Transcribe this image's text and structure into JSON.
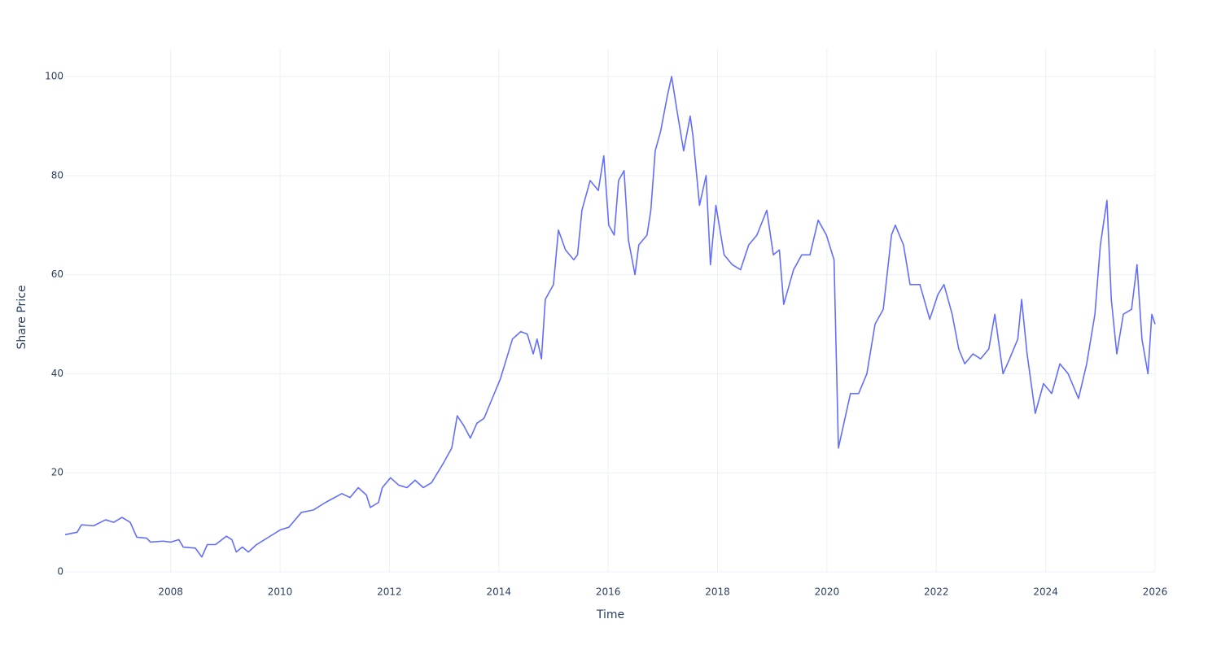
{
  "chart_data": {
    "type": "line",
    "x_label": "Time",
    "y_label": "Share Price",
    "x": [
      2006.07,
      2006.29,
      2006.37,
      2006.59,
      2006.81,
      2006.96,
      2007.11,
      2007.26,
      2007.38,
      2007.56,
      2007.63,
      2007.86,
      2008.0,
      2008.15,
      2008.23,
      2008.45,
      2008.57,
      2008.67,
      2008.82,
      2009.02,
      2009.12,
      2009.2,
      2009.31,
      2009.42,
      2009.57,
      2009.79,
      2010.01,
      2010.16,
      2010.39,
      2010.61,
      2010.83,
      2011.13,
      2011.28,
      2011.43,
      2011.58,
      2011.65,
      2011.8,
      2011.87,
      2012.02,
      2012.17,
      2012.32,
      2012.47,
      2012.62,
      2012.77,
      2012.99,
      2013.14,
      2013.24,
      2013.36,
      2013.48,
      2013.6,
      2013.73,
      2013.88,
      2014.03,
      2014.14,
      2014.25,
      2014.4,
      2014.52,
      2014.63,
      2014.7,
      2014.78,
      2014.85,
      2015.0,
      2015.09,
      2015.22,
      2015.37,
      2015.44,
      2015.52,
      2015.67,
      2015.82,
      2015.92,
      2016.01,
      2016.11,
      2016.19,
      2016.29,
      2016.37,
      2016.49,
      2016.56,
      2016.71,
      2016.78,
      2016.86,
      2016.96,
      2017.08,
      2017.16,
      2017.26,
      2017.38,
      2017.5,
      2017.55,
      2017.67,
      2017.79,
      2017.87,
      2017.97,
      2018.12,
      2018.27,
      2018.42,
      2018.57,
      2018.72,
      2018.9,
      2019.02,
      2019.13,
      2019.21,
      2019.39,
      2019.54,
      2019.69,
      2019.84,
      2019.99,
      2020.13,
      2020.21,
      2020.31,
      2020.43,
      2020.58,
      2020.73,
      2020.88,
      2021.03,
      2021.18,
      2021.25,
      2021.4,
      2021.52,
      2021.7,
      2021.88,
      2022.03,
      2022.14,
      2022.29,
      2022.41,
      2022.52,
      2022.67,
      2022.81,
      2022.96,
      2023.07,
      2023.22,
      2023.34,
      2023.49,
      2023.56,
      2023.66,
      2023.81,
      2023.96,
      2024.11,
      2024.26,
      2024.41,
      2024.6,
      2024.75,
      2024.9,
      2025.0,
      2025.12,
      2025.2,
      2025.3,
      2025.42,
      2025.57,
      2025.67,
      2025.76,
      2025.87,
      2025.94,
      2026.0
    ],
    "values": [
      7.5,
      8,
      9.5,
      9.3,
      10.5,
      10,
      11,
      10,
      7,
      6.8,
      6,
      6.2,
      6,
      6.5,
      5,
      4.8,
      3,
      5.5,
      5.5,
      7.2,
      6.5,
      4,
      5,
      4,
      5.5,
      7,
      8.5,
      9,
      12,
      12.5,
      14,
      15.8,
      15,
      17,
      15.5,
      13,
      14,
      17,
      19,
      17.5,
      17,
      18.5,
      17,
      18,
      22,
      25,
      31.5,
      29.5,
      27,
      30,
      31,
      35,
      39,
      43,
      47,
      48.5,
      48,
      44,
      47,
      43,
      55,
      58,
      69,
      65,
      63,
      64,
      73,
      79,
      77,
      84,
      70,
      68,
      79,
      81,
      67,
      60,
      66,
      68,
      73,
      85,
      89,
      96,
      100,
      93,
      85,
      92,
      88,
      74,
      80,
      62,
      74,
      64,
      62,
      61,
      66,
      68,
      73,
      64,
      65,
      54,
      61,
      64,
      64,
      71,
      68,
      63,
      25,
      30,
      36,
      36,
      40,
      50,
      53,
      68,
      70,
      66,
      58,
      58,
      51,
      56,
      58,
      52,
      45,
      42,
      44,
      43,
      45,
      52,
      40,
      43,
      47,
      55,
      44,
      32,
      38,
      36,
      42,
      40,
      35,
      42,
      52,
      66,
      75,
      55,
      44,
      52,
      53,
      62,
      47,
      40,
      52,
      50
    ],
    "color": "#636efa",
    "xlim": [
      2006.07,
      2026
    ],
    "xticks": [
      2008,
      2010,
      2012,
      2014,
      2016,
      2018,
      2020,
      2022,
      2024,
      2026
    ],
    "ylim": [
      0,
      105.6
    ],
    "yticks": [
      0,
      20,
      40,
      60,
      80,
      100
    ],
    "grid": true
  }
}
